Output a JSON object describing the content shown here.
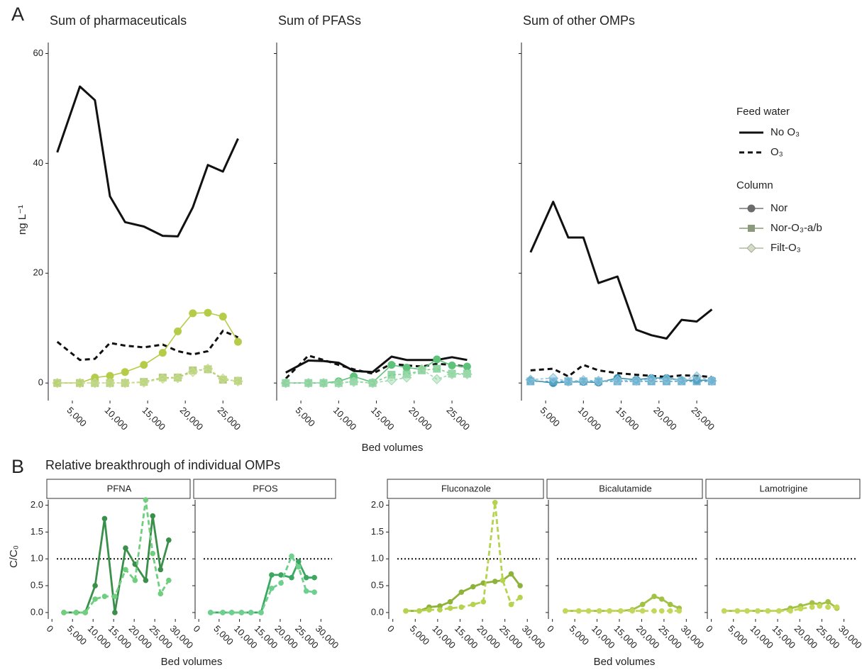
{
  "figure": {
    "panel_a": "A",
    "panel_b": "B",
    "panel_b_title": "Relative breakthrough of individual OMPs",
    "a_ylabel": "ng L⁻¹",
    "b_ylabel": "C/C₀",
    "a_xlabel": "Bed volumes",
    "b_xlabel_left": "Bed volumes",
    "b_xlabel_right": "Bed volumes"
  },
  "legend": {
    "feed_title": "Feed water",
    "feed": [
      "No O₃",
      "O₃"
    ],
    "column_title": "Column",
    "column": [
      "Nor",
      "Nor-O₃-a/b",
      "Filt-O₃"
    ]
  },
  "chart_data": [
    {
      "type": "line",
      "title": "Sum of pharmaceuticals",
      "xlim": [
        1800,
        29500
      ],
      "ylim": [
        -3.2,
        62
      ],
      "yticks": [
        0,
        20,
        40,
        60
      ],
      "xticks": [
        {
          "value": 5000,
          "label": "5,000"
        },
        {
          "value": 10000,
          "label": "10,000"
        },
        {
          "value": 15000,
          "label": "15,000"
        },
        {
          "value": 20000,
          "label": "20,000"
        },
        {
          "value": 25000,
          "label": "25,000"
        }
      ],
      "x": [
        3000,
        6000,
        8000,
        10000,
        12000,
        14500,
        17000,
        19000,
        21000,
        23000,
        25000,
        27000
      ],
      "series": [
        {
          "color": "#111111",
          "dash": false,
          "marker": "none",
          "values": [
            42,
            54,
            51.5,
            34,
            29.3,
            28.5,
            26.8,
            26.7,
            32,
            39.7,
            38.5,
            44.5
          ]
        },
        {
          "color": "#111111",
          "dash": true,
          "marker": "none",
          "values": [
            7.5,
            4.2,
            4.4,
            7.3,
            6.8,
            6.5,
            7,
            5.8,
            5.2,
            5.8,
            9.5,
            8.3
          ]
        },
        {
          "color": "#b4cc48",
          "dash": false,
          "marker": "circle",
          "values": [
            0,
            0,
            1,
            1.3,
            2,
            3.3,
            5.5,
            9.4,
            12.7,
            12.8,
            12.1,
            7.5
          ]
        },
        {
          "color": "#a6c56a",
          "dash": true,
          "marker": "square",
          "values": [
            0,
            0,
            0,
            0,
            0,
            0.2,
            1,
            1,
            2.3,
            2.5,
            0.6,
            0.4
          ]
        },
        {
          "color": "#c9dc8c",
          "dash": true,
          "marker": "diamond",
          "values": [
            0,
            0,
            0,
            0,
            0,
            0.1,
            0.8,
            0.9,
            2,
            2.6,
            0.8,
            0.3
          ]
        }
      ]
    },
    {
      "type": "line",
      "title": "Sum of PFASs",
      "xlim": [
        1800,
        29500
      ],
      "ylim": [
        -3.2,
        62
      ],
      "xticks": [
        {
          "value": 5000,
          "label": "5,000"
        },
        {
          "value": 10000,
          "label": "10,000"
        },
        {
          "value": 15000,
          "label": "15,000"
        },
        {
          "value": 20000,
          "label": "20,000"
        },
        {
          "value": 25000,
          "label": "25,000"
        }
      ],
      "x": [
        3000,
        6000,
        8000,
        10000,
        12000,
        14500,
        17000,
        19000,
        21000,
        23000,
        25000,
        27000
      ],
      "series": [
        {
          "color": "#111111",
          "dash": false,
          "marker": "none",
          "values": [
            1.9,
            4.1,
            4,
            3.7,
            2.2,
            2,
            4.8,
            4.2,
            4.2,
            4.2,
            4.7,
            4.2
          ]
        },
        {
          "color": "#111111",
          "dash": true,
          "marker": "none",
          "values": [
            0.8,
            5,
            4.2,
            3.3,
            2.5,
            1.7,
            3.5,
            3.2,
            3,
            3.5,
            3.3,
            3
          ]
        },
        {
          "color": "#5ec27a",
          "dash": false,
          "marker": "circle",
          "values": [
            0,
            0,
            0,
            0.3,
            1.2,
            0.1,
            3.3,
            2.8,
            2.5,
            4.3,
            3.2,
            3
          ]
        },
        {
          "color": "#7fcf95",
          "dash": true,
          "marker": "square",
          "values": [
            0,
            0,
            0,
            0,
            0.3,
            0,
            1.5,
            1.6,
            2.3,
            2.6,
            1.7,
            1.7
          ]
        },
        {
          "color": "#9fdaad",
          "dash": true,
          "marker": "diamond",
          "values": [
            0,
            0,
            0,
            0,
            0.2,
            0,
            0.5,
            1,
            2.5,
            0.7,
            1.6,
            1.6
          ]
        }
      ]
    },
    {
      "type": "line",
      "title": "Sum of other OMPs",
      "xlim": [
        1800,
        29500
      ],
      "ylim": [
        -3.2,
        62
      ],
      "xticks": [
        {
          "value": 5000,
          "label": "5,000"
        },
        {
          "value": 10000,
          "label": "10,000"
        },
        {
          "value": 15000,
          "label": "15,000"
        },
        {
          "value": 20000,
          "label": "20,000"
        },
        {
          "value": 25000,
          "label": "25,000"
        }
      ],
      "x": [
        3000,
        6000,
        8000,
        10000,
        12000,
        14500,
        17000,
        19000,
        21000,
        23000,
        25000,
        27000
      ],
      "series": [
        {
          "color": "#111111",
          "dash": false,
          "marker": "none",
          "values": [
            23.8,
            33,
            26.5,
            26.5,
            18.2,
            19.4,
            9.7,
            8.7,
            8.1,
            11.5,
            11.2,
            13.4
          ]
        },
        {
          "color": "#111111",
          "dash": true,
          "marker": "none",
          "values": [
            2.3,
            2.6,
            1.2,
            3.3,
            2.3,
            1.8,
            1.5,
            1.3,
            1.1,
            1.4,
            1.3,
            1.1
          ]
        },
        {
          "color": "#3a8fb0",
          "dash": false,
          "marker": "circle",
          "values": [
            0.5,
            0,
            0.2,
            0.2,
            0.1,
            0.9,
            0.6,
            0.9,
            0.9,
            0.5,
            0.5,
            0.5
          ]
        },
        {
          "color": "#5aa6c8",
          "dash": true,
          "marker": "square",
          "values": [
            0.3,
            0.3,
            0.3,
            0.3,
            0.3,
            0.3,
            0.3,
            0.3,
            0.3,
            0.3,
            0.3,
            0.3
          ]
        },
        {
          "color": "#8cc4dc",
          "dash": true,
          "marker": "diamond",
          "values": [
            0.6,
            0.9,
            0.3,
            0.5,
            0.4,
            0.5,
            0.4,
            0.7,
            0.7,
            0.5,
            1.2,
            0.4
          ]
        }
      ]
    },
    {
      "type": "line",
      "title": "PFNA",
      "xlim": [
        -900,
        33600
      ],
      "ylim": [
        -0.12,
        2.1
      ],
      "hline": 1,
      "yticks": [
        {
          "value": 0,
          "label": "0.0"
        },
        {
          "value": 0.5,
          "label": "0.5"
        },
        {
          "value": 1,
          "label": "1.0"
        },
        {
          "value": 1.5,
          "label": "1.5"
        },
        {
          "value": 2,
          "label": "2.0"
        }
      ],
      "xticks": [
        0,
        {
          "value": 5000,
          "label": "5,000"
        },
        {
          "value": 10000,
          "label": "10,000"
        },
        {
          "value": 15000,
          "label": "15,000"
        },
        {
          "value": 20000,
          "label": "20,000"
        },
        {
          "value": 25000,
          "label": "25,000"
        },
        {
          "value": 30000,
          "label": "30,000"
        }
      ],
      "x": [
        2900,
        5900,
        8100,
        10500,
        12800,
        15300,
        17900,
        20200,
        22800,
        24500,
        26400,
        28400
      ],
      "series": [
        {
          "color": "#3a8f4a",
          "dash": false,
          "marker": "circle",
          "values": [
            0,
            0,
            0,
            0.5,
            1.75,
            0,
            1.2,
            0.9,
            0.6,
            1.8,
            0.8,
            1.35
          ]
        },
        {
          "color": "#6fcf7f",
          "dash": true,
          "marker": "circle",
          "values": [
            0,
            0,
            0,
            0.25,
            0.3,
            0.3,
            0.8,
            0.6,
            2.1,
            1.1,
            0.35,
            0.6
          ]
        }
      ]
    },
    {
      "type": "line",
      "title": "PFOS",
      "xlim": [
        -900,
        33600
      ],
      "ylim": [
        -0.12,
        2.1
      ],
      "hline": 1,
      "xticks": [
        0,
        {
          "value": 5000,
          "label": "5,000"
        },
        {
          "value": 10000,
          "label": "10,000"
        },
        {
          "value": 15000,
          "label": "15,000"
        },
        {
          "value": 20000,
          "label": "20,000"
        },
        {
          "value": 25000,
          "label": "25,000"
        },
        {
          "value": 30000,
          "label": "30,000"
        }
      ],
      "x": [
        2900,
        5900,
        8100,
        10500,
        12800,
        15300,
        17900,
        20200,
        22800,
        24500,
        26400,
        28400
      ],
      "series": [
        {
          "color": "#3aa860",
          "dash": false,
          "marker": "circle",
          "values": [
            0,
            0,
            0,
            0,
            0,
            0,
            0.7,
            0.7,
            0.65,
            0.95,
            0.65,
            0.65
          ]
        },
        {
          "color": "#6fcf8f",
          "dash": true,
          "marker": "circle",
          "values": [
            0,
            0,
            0,
            0,
            0,
            0,
            0.45,
            0.55,
            1.05,
            0.85,
            0.4,
            0.38
          ]
        }
      ]
    },
    {
      "type": "line",
      "title": "Fluconazole",
      "xlim": [
        -900,
        33600
      ],
      "ylim": [
        -0.12,
        2.1
      ],
      "hline": 1,
      "yticks": [
        {
          "value": 0,
          "label": "0.0"
        },
        {
          "value": 0.5,
          "label": "0.5"
        },
        {
          "value": 1,
          "label": "1.0"
        },
        {
          "value": 1.5,
          "label": "1.5"
        },
        {
          "value": 2,
          "label": "2.0"
        }
      ],
      "xticks": [
        0,
        {
          "value": 5000,
          "label": "5,000"
        },
        {
          "value": 10000,
          "label": "10,000"
        },
        {
          "value": 15000,
          "label": "15,000"
        },
        {
          "value": 20000,
          "label": "20,000"
        },
        {
          "value": 25000,
          "label": "25,000"
        },
        {
          "value": 30000,
          "label": "30,000"
        }
      ],
      "x": [
        2900,
        5900,
        8100,
        10500,
        12800,
        15300,
        17900,
        20200,
        22800,
        24500,
        26400,
        28400
      ],
      "series": [
        {
          "color": "#8db33a",
          "dash": false,
          "marker": "circle",
          "values": [
            0.03,
            0.03,
            0.1,
            0.12,
            0.2,
            0.38,
            0.48,
            0.55,
            0.58,
            0.6,
            0.72,
            0.5
          ]
        },
        {
          "color": "#b5d34e",
          "dash": true,
          "marker": "circle",
          "values": [
            0.03,
            0.03,
            0.05,
            0.05,
            0.08,
            0.1,
            0.15,
            0.2,
            2.05,
            0.6,
            0.15,
            0.28
          ]
        }
      ]
    },
    {
      "type": "line",
      "title": "Bicalutamide",
      "xlim": [
        -900,
        33600
      ],
      "ylim": [
        -0.12,
        2.1
      ],
      "hline": 1,
      "xticks": [
        0,
        {
          "value": 5000,
          "label": "5,000"
        },
        {
          "value": 10000,
          "label": "10,000"
        },
        {
          "value": 15000,
          "label": "15,000"
        },
        {
          "value": 20000,
          "label": "20,000"
        },
        {
          "value": 25000,
          "label": "25,000"
        },
        {
          "value": 30000,
          "label": "30,000"
        }
      ],
      "x": [
        2900,
        5900,
        8100,
        10500,
        12800,
        15300,
        17900,
        20200,
        22800,
        24500,
        26400,
        28400
      ],
      "series": [
        {
          "color": "#a2c244",
          "dash": false,
          "marker": "circle",
          "values": [
            0.03,
            0.03,
            0.03,
            0.03,
            0.03,
            0.03,
            0.05,
            0.15,
            0.3,
            0.25,
            0.15,
            0.08
          ]
        },
        {
          "color": "#c3d85a",
          "dash": true,
          "marker": "circle",
          "values": [
            0.03,
            0.03,
            0.03,
            0.03,
            0.03,
            0.03,
            0.03,
            0.03,
            0.03,
            0.03,
            0.03,
            0.03
          ]
        }
      ]
    },
    {
      "type": "line",
      "title": "Lamotrigine",
      "xlim": [
        -900,
        33600
      ],
      "ylim": [
        -0.12,
        2.1
      ],
      "hline": 1,
      "xticks": [
        0,
        {
          "value": 5000,
          "label": "5,000"
        },
        {
          "value": 10000,
          "label": "10,000"
        },
        {
          "value": 15000,
          "label": "15,000"
        },
        {
          "value": 20000,
          "label": "20,000"
        },
        {
          "value": 25000,
          "label": "25,000"
        },
        {
          "value": 30000,
          "label": "30,000"
        }
      ],
      "x": [
        2900,
        5900,
        8100,
        10500,
        12800,
        15300,
        17900,
        20200,
        22800,
        24500,
        26400,
        28400
      ],
      "series": [
        {
          "color": "#a2c244",
          "dash": false,
          "marker": "circle",
          "values": [
            0.03,
            0.03,
            0.03,
            0.03,
            0.03,
            0.03,
            0.08,
            0.12,
            0.18,
            0.15,
            0.2,
            0.08
          ]
        },
        {
          "color": "#c3d85a",
          "dash": true,
          "marker": "circle",
          "values": [
            0.03,
            0.03,
            0.03,
            0.03,
            0.03,
            0.03,
            0.03,
            0.07,
            0.1,
            0.12,
            0.1,
            0.1
          ]
        }
      ]
    }
  ]
}
